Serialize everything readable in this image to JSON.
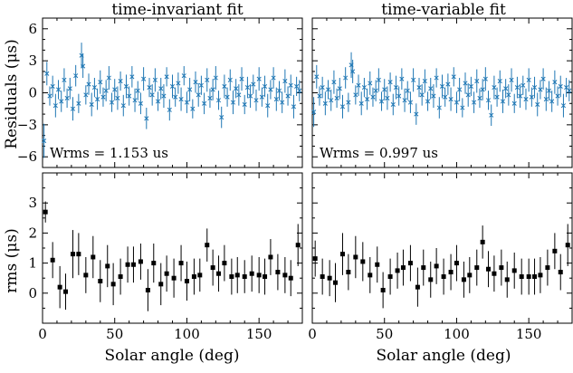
{
  "figure": {
    "panel_titles": [
      "time-invariant fit",
      "time-variable fit"
    ],
    "xlabel": "Solar angle (deg)",
    "ylabel_top": "Residuals (μs)",
    "ylabel_bottom": "rms (μs)",
    "x_ticks": [
      0,
      50,
      100,
      150
    ],
    "y_ticks_top": [
      -6,
      -3,
      0,
      3,
      6
    ],
    "y_ticks_bottom": [
      0,
      1,
      2,
      3
    ],
    "colors": {
      "residuals": "#1f77b4",
      "rms": "#000000"
    }
  },
  "chart_data": [
    {
      "type": "scatter",
      "panel": "top-left",
      "title": "time-invariant fit",
      "xlabel": "",
      "ylabel": "Residuals (μs)",
      "xlim": [
        0,
        180
      ],
      "ylim": [
        -7,
        7
      ],
      "annotation": "Wrms = 1.153 us",
      "marker": "x",
      "series": [
        {
          "x": [
            1,
            3,
            5,
            7,
            9,
            11,
            13,
            15,
            17,
            19,
            21,
            23,
            25,
            27,
            28,
            30,
            32,
            34,
            36,
            38,
            40,
            42,
            44,
            46,
            48,
            50,
            52,
            54,
            56,
            58,
            60,
            62,
            64,
            66,
            68,
            70,
            72,
            74,
            76,
            78,
            80,
            82,
            84,
            86,
            88,
            90,
            92,
            94,
            96,
            98,
            100,
            102,
            104,
            106,
            108,
            110,
            112,
            114,
            116,
            118,
            120,
            122,
            124,
            126,
            128,
            130,
            132,
            134,
            136,
            138,
            140,
            142,
            144,
            146,
            148,
            150,
            152,
            154,
            156,
            158,
            160,
            162,
            164,
            166,
            168,
            170,
            172,
            174,
            176,
            178
          ],
          "y": [
            -4.5,
            1.8,
            -0.3,
            0.6,
            -1.2,
            0.3,
            -0.8,
            1.2,
            -0.5,
            0.4,
            -1.5,
            1.6,
            -1.0,
            3.5,
            2.5,
            -0.2,
            0.8,
            -1.1,
            0.5,
            -0.6,
            1.0,
            -0.4,
            0.2,
            1.4,
            -0.9,
            0.3,
            -0.5,
            1.1,
            -1.2,
            0.6,
            -0.3,
            1.5,
            -0.7,
            0.2,
            -1.0,
            1.3,
            -2.4,
            0.5,
            -0.2,
            1.2,
            -0.8,
            0.4,
            -0.3,
            1.5,
            -1.6,
            0.6,
            -0.4,
            0.9,
            -0.6,
            1.6,
            -0.9,
            0.3,
            -1.5,
            1.0,
            -0.2,
            0.7,
            -1.0,
            1.2,
            -0.5,
            0.3,
            1.4,
            -0.7,
            -2.3,
            0.6,
            -0.4,
            1.2,
            -0.9,
            0.4,
            -0.2,
            1.3,
            -1.1,
            0.5,
            -0.3,
            0.8,
            -0.7,
            1.3,
            -0.4,
            0.6,
            -1.2,
            0.3,
            1.4,
            -0.6,
            0.2,
            -0.9,
            1.1,
            -0.3,
            0.7,
            -1.3,
            0.6,
            0.2
          ],
          "yerr": [
            1.6,
            1.1,
            0.9,
            1.0,
            1.1,
            0.9,
            1.0,
            1.1,
            0.9,
            1.0,
            1.1,
            1.0,
            0.9,
            1.2,
            1.1,
            0.9,
            1.0,
            1.1,
            0.9,
            1.0,
            1.1,
            0.9,
            1.0,
            1.1,
            0.9,
            1.0,
            1.1,
            0.9,
            1.0,
            1.1,
            0.9,
            1.0,
            1.1,
            0.9,
            1.0,
            1.1,
            1.0,
            0.9,
            1.0,
            1.1,
            0.9,
            1.0,
            1.1,
            0.9,
            1.0,
            1.1,
            0.9,
            1.0,
            1.1,
            0.9,
            1.0,
            1.1,
            0.9,
            1.0,
            1.1,
            0.9,
            1.0,
            1.1,
            0.9,
            1.0,
            1.1,
            0.9,
            1.0,
            1.1,
            0.9,
            1.0,
            1.1,
            0.9,
            1.0,
            1.1,
            0.9,
            1.0,
            1.1,
            0.9,
            1.0,
            1.1,
            0.9,
            1.0,
            1.1,
            0.9,
            1.0,
            1.1,
            0.9,
            1.0,
            1.1,
            0.9,
            1.0,
            1.1,
            0.9,
            1.0
          ]
        }
      ]
    },
    {
      "type": "scatter",
      "panel": "top-right",
      "title": "time-variable fit",
      "xlabel": "",
      "ylabel": "",
      "xlim": [
        0,
        180
      ],
      "ylim": [
        -7,
        7
      ],
      "annotation": "Wrms = 0.997 us",
      "marker": "x",
      "series": [
        {
          "x": [
            1,
            3,
            5,
            7,
            9,
            11,
            13,
            15,
            17,
            19,
            21,
            23,
            25,
            27,
            28,
            30,
            32,
            34,
            36,
            38,
            40,
            42,
            44,
            46,
            48,
            50,
            52,
            54,
            56,
            58,
            60,
            62,
            64,
            66,
            68,
            70,
            72,
            74,
            76,
            78,
            80,
            82,
            84,
            86,
            88,
            90,
            92,
            94,
            96,
            98,
            100,
            102,
            104,
            106,
            108,
            110,
            112,
            114,
            116,
            118,
            120,
            122,
            124,
            126,
            128,
            130,
            132,
            134,
            136,
            138,
            140,
            142,
            144,
            146,
            148,
            150,
            152,
            154,
            156,
            158,
            160,
            162,
            164,
            166,
            168,
            170,
            172,
            174,
            176,
            178
          ],
          "y": [
            -1.8,
            1.5,
            -0.3,
            0.5,
            -1.0,
            0.3,
            -0.7,
            1.0,
            -0.5,
            0.4,
            -1.3,
            1.4,
            -0.9,
            2.6,
            2.0,
            -0.2,
            0.7,
            -1.0,
            0.5,
            -0.6,
            0.9,
            -0.4,
            0.2,
            1.2,
            -0.8,
            0.3,
            -0.5,
            1.0,
            -1.1,
            0.5,
            -0.3,
            1.3,
            -0.7,
            0.2,
            -0.9,
            1.2,
            -2.0,
            0.5,
            -0.2,
            1.1,
            -0.8,
            0.4,
            -0.3,
            1.4,
            -1.4,
            0.6,
            -0.4,
            0.8,
            -0.6,
            1.5,
            -0.9,
            0.3,
            -1.4,
            0.9,
            -0.2,
            0.6,
            -0.9,
            1.1,
            -0.5,
            0.3,
            1.3,
            -0.7,
            -2.1,
            0.5,
            -0.4,
            1.1,
            -0.8,
            0.4,
            -0.2,
            1.2,
            -1.0,
            0.5,
            -0.3,
            0.7,
            -0.6,
            1.2,
            -0.4,
            0.5,
            -1.1,
            0.3,
            1.3,
            -0.6,
            0.2,
            -0.8,
            1.0,
            -0.3,
            0.6,
            -1.2,
            0.5,
            0.2
          ],
          "yerr": [
            1.4,
            1.1,
            0.9,
            1.0,
            1.1,
            0.9,
            1.0,
            1.1,
            0.9,
            1.0,
            1.1,
            1.0,
            0.9,
            1.2,
            1.1,
            0.9,
            1.0,
            1.1,
            0.9,
            1.0,
            1.1,
            0.9,
            1.0,
            1.1,
            0.9,
            1.0,
            1.1,
            0.9,
            1.0,
            1.1,
            0.9,
            1.0,
            1.1,
            0.9,
            1.0,
            1.1,
            1.0,
            0.9,
            1.0,
            1.1,
            0.9,
            1.0,
            1.1,
            0.9,
            1.0,
            1.1,
            0.9,
            1.0,
            1.1,
            0.9,
            1.0,
            1.1,
            0.9,
            1.0,
            1.1,
            0.9,
            1.0,
            1.1,
            0.9,
            1.0,
            1.1,
            0.9,
            1.0,
            1.1,
            0.9,
            1.0,
            1.1,
            0.9,
            1.0,
            1.1,
            0.9,
            1.0,
            1.1,
            0.9,
            1.0,
            1.1,
            0.9,
            1.0,
            1.1,
            0.9,
            1.0,
            1.1,
            0.9,
            1.0,
            1.1,
            0.9,
            1.0,
            1.1,
            0.9,
            1.0
          ]
        }
      ]
    },
    {
      "type": "scatter",
      "panel": "bottom-left",
      "title": "",
      "xlabel": "Solar angle (deg)",
      "ylabel": "rms (μs)",
      "xlim": [
        0,
        180
      ],
      "ylim": [
        -1,
        4
      ],
      "marker": "square",
      "series": [
        {
          "x": [
            2,
            7,
            12,
            16,
            21,
            25,
            30,
            35,
            40,
            45,
            49,
            54,
            59,
            63,
            68,
            73,
            77,
            82,
            86,
            91,
            96,
            100,
            105,
            109,
            114,
            118,
            122,
            126,
            131,
            135,
            140,
            145,
            150,
            154,
            158,
            163,
            168,
            172,
            177
          ],
          "y": [
            2.7,
            1.1,
            0.2,
            0.05,
            1.3,
            1.3,
            0.6,
            1.2,
            0.4,
            0.9,
            0.3,
            0.55,
            0.95,
            0.95,
            1.05,
            0.1,
            1.0,
            0.3,
            0.65,
            0.5,
            1.0,
            0.4,
            0.55,
            0.6,
            1.6,
            0.85,
            0.65,
            1.0,
            0.55,
            0.6,
            0.55,
            0.65,
            0.6,
            0.55,
            1.2,
            0.7,
            0.6,
            0.5,
            1.6
          ],
          "yerr": [
            0.35,
            0.6,
            0.7,
            0.6,
            0.8,
            0.7,
            0.6,
            0.7,
            0.7,
            0.7,
            0.7,
            0.6,
            0.6,
            0.6,
            0.6,
            0.7,
            0.65,
            0.7,
            0.6,
            0.65,
            0.6,
            0.65,
            0.6,
            0.55,
            0.55,
            0.6,
            0.6,
            0.6,
            0.6,
            0.6,
            0.55,
            0.6,
            0.6,
            0.6,
            0.6,
            0.6,
            0.6,
            0.6,
            0.7
          ]
        }
      ]
    },
    {
      "type": "scatter",
      "panel": "bottom-right",
      "title": "",
      "xlabel": "Solar angle (deg)",
      "ylabel": "",
      "xlim": [
        0,
        180
      ],
      "ylim": [
        -1,
        4
      ],
      "marker": "square",
      "series": [
        {
          "x": [
            2,
            7,
            12,
            16,
            21,
            25,
            30,
            35,
            40,
            45,
            49,
            54,
            59,
            63,
            68,
            73,
            77,
            82,
            86,
            91,
            96,
            100,
            105,
            109,
            114,
            118,
            122,
            126,
            131,
            135,
            140,
            145,
            150,
            154,
            158,
            163,
            168,
            172,
            177
          ],
          "y": [
            1.15,
            0.55,
            0.5,
            0.35,
            1.3,
            0.7,
            1.2,
            1.05,
            0.6,
            0.95,
            0.1,
            0.55,
            0.75,
            0.85,
            1.0,
            0.2,
            0.85,
            0.45,
            0.9,
            0.55,
            0.7,
            1.0,
            0.45,
            0.6,
            0.85,
            1.7,
            0.8,
            0.65,
            0.85,
            0.45,
            0.75,
            0.55,
            0.55,
            0.55,
            0.6,
            0.85,
            1.4,
            0.7,
            1.6
          ],
          "yerr": [
            0.6,
            0.6,
            0.6,
            0.65,
            0.7,
            0.6,
            0.7,
            0.65,
            0.6,
            0.6,
            0.6,
            0.6,
            0.6,
            0.6,
            0.6,
            0.65,
            0.6,
            0.6,
            0.6,
            0.6,
            0.6,
            0.6,
            0.6,
            0.6,
            0.6,
            0.55,
            0.6,
            0.6,
            0.6,
            0.6,
            0.6,
            0.6,
            0.6,
            0.6,
            0.6,
            0.6,
            0.6,
            0.6,
            0.7
          ]
        }
      ]
    }
  ]
}
